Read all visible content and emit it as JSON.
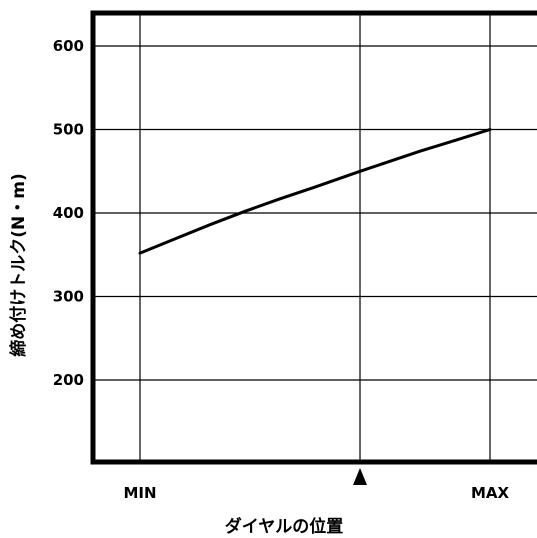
{
  "chart_data": {
    "type": "line",
    "title": "",
    "xlabel": "ダイヤルの位置",
    "ylabel": "締め付けトルク(N・m)",
    "x_categories": [
      "MIN",
      "MAX"
    ],
    "x_range": [
      0,
      1
    ],
    "ylim": [
      150,
      650
    ],
    "yticks": [
      200,
      300,
      400,
      500,
      600
    ],
    "y_tick_labels": [
      "200",
      "300",
      "400",
      "500",
      "600"
    ],
    "xgrid_positions": [
      0,
      0.6286,
      1
    ],
    "marker": {
      "symbol": "triangle-up",
      "x": 0.6286
    },
    "grid": true,
    "series": [
      {
        "x": [
          0,
          0.1,
          0.2,
          0.3,
          0.4,
          0.5,
          0.6286,
          0.7,
          0.8,
          0.9,
          1
        ],
        "values": [
          352,
          369,
          386,
          402,
          417,
          431,
          450,
          460,
          474,
          487,
          500
        ]
      }
    ]
  }
}
